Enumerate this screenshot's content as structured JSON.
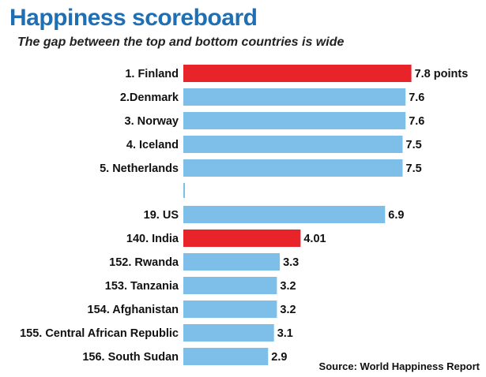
{
  "chart_data": {
    "type": "bar",
    "orientation": "horizontal",
    "title": "Happiness scoreboard",
    "subtitle": "The gap between the top and bottom countries is wide",
    "categories": [
      "1. Finland",
      "2.Denmark",
      "3. Norway",
      "4. Iceland",
      "5. Netherlands",
      "",
      "19. US",
      "140. India",
      "152. Rwanda",
      "153. Tanzania",
      "154. Afghanistan",
      "155. Central African Republic",
      "156. South Sudan"
    ],
    "values": [
      7.8,
      7.6,
      7.6,
      7.5,
      7.5,
      null,
      6.9,
      4.01,
      3.3,
      3.2,
      3.2,
      3.1,
      2.9
    ],
    "value_labels": [
      "7.8 points",
      "7.6",
      "7.6",
      "7.5",
      "7.5",
      "",
      "6.9",
      "4.01",
      "3.3",
      "3.2",
      "3.2",
      "3.1",
      "2.9"
    ],
    "highlighted": [
      "1. Finland",
      "140. India"
    ],
    "xlim": [
      0,
      8
    ],
    "grid": false,
    "colors": {
      "default": "#7dbfe8",
      "highlight": "#e8232a"
    }
  },
  "source": "Source: World Happiness Report"
}
